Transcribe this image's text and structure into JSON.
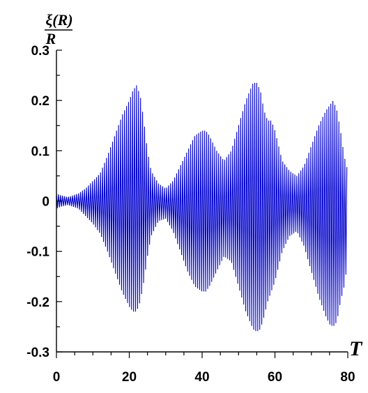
{
  "chart_data": {
    "type": "line",
    "ylabel_numerator": "ξ(R)",
    "ylabel_denominator": "R",
    "xlabel": "T",
    "xlim": [
      0,
      80
    ],
    "ylim": [
      -0.3,
      0.3
    ],
    "x_ticks": [
      "0",
      "20",
      "40",
      "60",
      "80"
    ],
    "y_ticks": [
      "0.3",
      "0.2",
      "0.1",
      "0",
      "-0.1",
      "-0.2",
      "-0.3"
    ],
    "grid": false,
    "line_color": "#0000cc",
    "oscillation_period": 0.55,
    "envelope_upper": [
      [
        0,
        0.015
      ],
      [
        1,
        0.012
      ],
      [
        3,
        0.008
      ],
      [
        4,
        0.01
      ],
      [
        6,
        0.015
      ],
      [
        8,
        0.025
      ],
      [
        10,
        0.04
      ],
      [
        12,
        0.055
      ],
      [
        14,
        0.09
      ],
      [
        16,
        0.13
      ],
      [
        18,
        0.17
      ],
      [
        20,
        0.2
      ],
      [
        21,
        0.22
      ],
      [
        22,
        0.23
      ],
      [
        23,
        0.21
      ],
      [
        24,
        0.16
      ],
      [
        25,
        0.1
      ],
      [
        26,
        0.06
      ],
      [
        28,
        0.035
      ],
      [
        30,
        0.025
      ],
      [
        32,
        0.04
      ],
      [
        34,
        0.07
      ],
      [
        36,
        0.1
      ],
      [
        38,
        0.13
      ],
      [
        40,
        0.14
      ],
      [
        41,
        0.14
      ],
      [
        42,
        0.13
      ],
      [
        44,
        0.1
      ],
      [
        46,
        0.08
      ],
      [
        48,
        0.1
      ],
      [
        50,
        0.15
      ],
      [
        52,
        0.2
      ],
      [
        54,
        0.235
      ],
      [
        55,
        0.235
      ],
      [
        56,
        0.22
      ],
      [
        57,
        0.18
      ],
      [
        58,
        0.16
      ],
      [
        59,
        0.16
      ],
      [
        60,
        0.14
      ],
      [
        62,
        0.08
      ],
      [
        64,
        0.06
      ],
      [
        66,
        0.05
      ],
      [
        68,
        0.07
      ],
      [
        70,
        0.11
      ],
      [
        72,
        0.15
      ],
      [
        74,
        0.18
      ],
      [
        75,
        0.19
      ],
      [
        76,
        0.2
      ],
      [
        77,
        0.18
      ],
      [
        78,
        0.14
      ],
      [
        79,
        0.09
      ],
      [
        80,
        0.06
      ]
    ],
    "envelope_lower": [
      [
        0,
        -0.015
      ],
      [
        1,
        -0.012
      ],
      [
        3,
        -0.008
      ],
      [
        4,
        -0.01
      ],
      [
        6,
        -0.015
      ],
      [
        8,
        -0.03
      ],
      [
        10,
        -0.045
      ],
      [
        12,
        -0.065
      ],
      [
        14,
        -0.1
      ],
      [
        16,
        -0.14
      ],
      [
        18,
        -0.18
      ],
      [
        20,
        -0.21
      ],
      [
        21,
        -0.22
      ],
      [
        22,
        -0.22
      ],
      [
        23,
        -0.2
      ],
      [
        24,
        -0.16
      ],
      [
        25,
        -0.11
      ],
      [
        26,
        -0.07
      ],
      [
        28,
        -0.04
      ],
      [
        30,
        -0.035
      ],
      [
        32,
        -0.06
      ],
      [
        34,
        -0.1
      ],
      [
        36,
        -0.14
      ],
      [
        38,
        -0.17
      ],
      [
        40,
        -0.18
      ],
      [
        41,
        -0.18
      ],
      [
        42,
        -0.17
      ],
      [
        44,
        -0.14
      ],
      [
        46,
        -0.11
      ],
      [
        48,
        -0.12
      ],
      [
        50,
        -0.17
      ],
      [
        52,
        -0.22
      ],
      [
        54,
        -0.255
      ],
      [
        55,
        -0.26
      ],
      [
        56,
        -0.255
      ],
      [
        57,
        -0.23
      ],
      [
        58,
        -0.2
      ],
      [
        60,
        -0.16
      ],
      [
        62,
        -0.1
      ],
      [
        64,
        -0.07
      ],
      [
        66,
        -0.06
      ],
      [
        68,
        -0.09
      ],
      [
        70,
        -0.14
      ],
      [
        72,
        -0.19
      ],
      [
        74,
        -0.23
      ],
      [
        75,
        -0.245
      ],
      [
        76,
        -0.25
      ],
      [
        77,
        -0.24
      ],
      [
        78,
        -0.2
      ],
      [
        79,
        -0.17
      ],
      [
        80,
        -0.12
      ]
    ]
  }
}
